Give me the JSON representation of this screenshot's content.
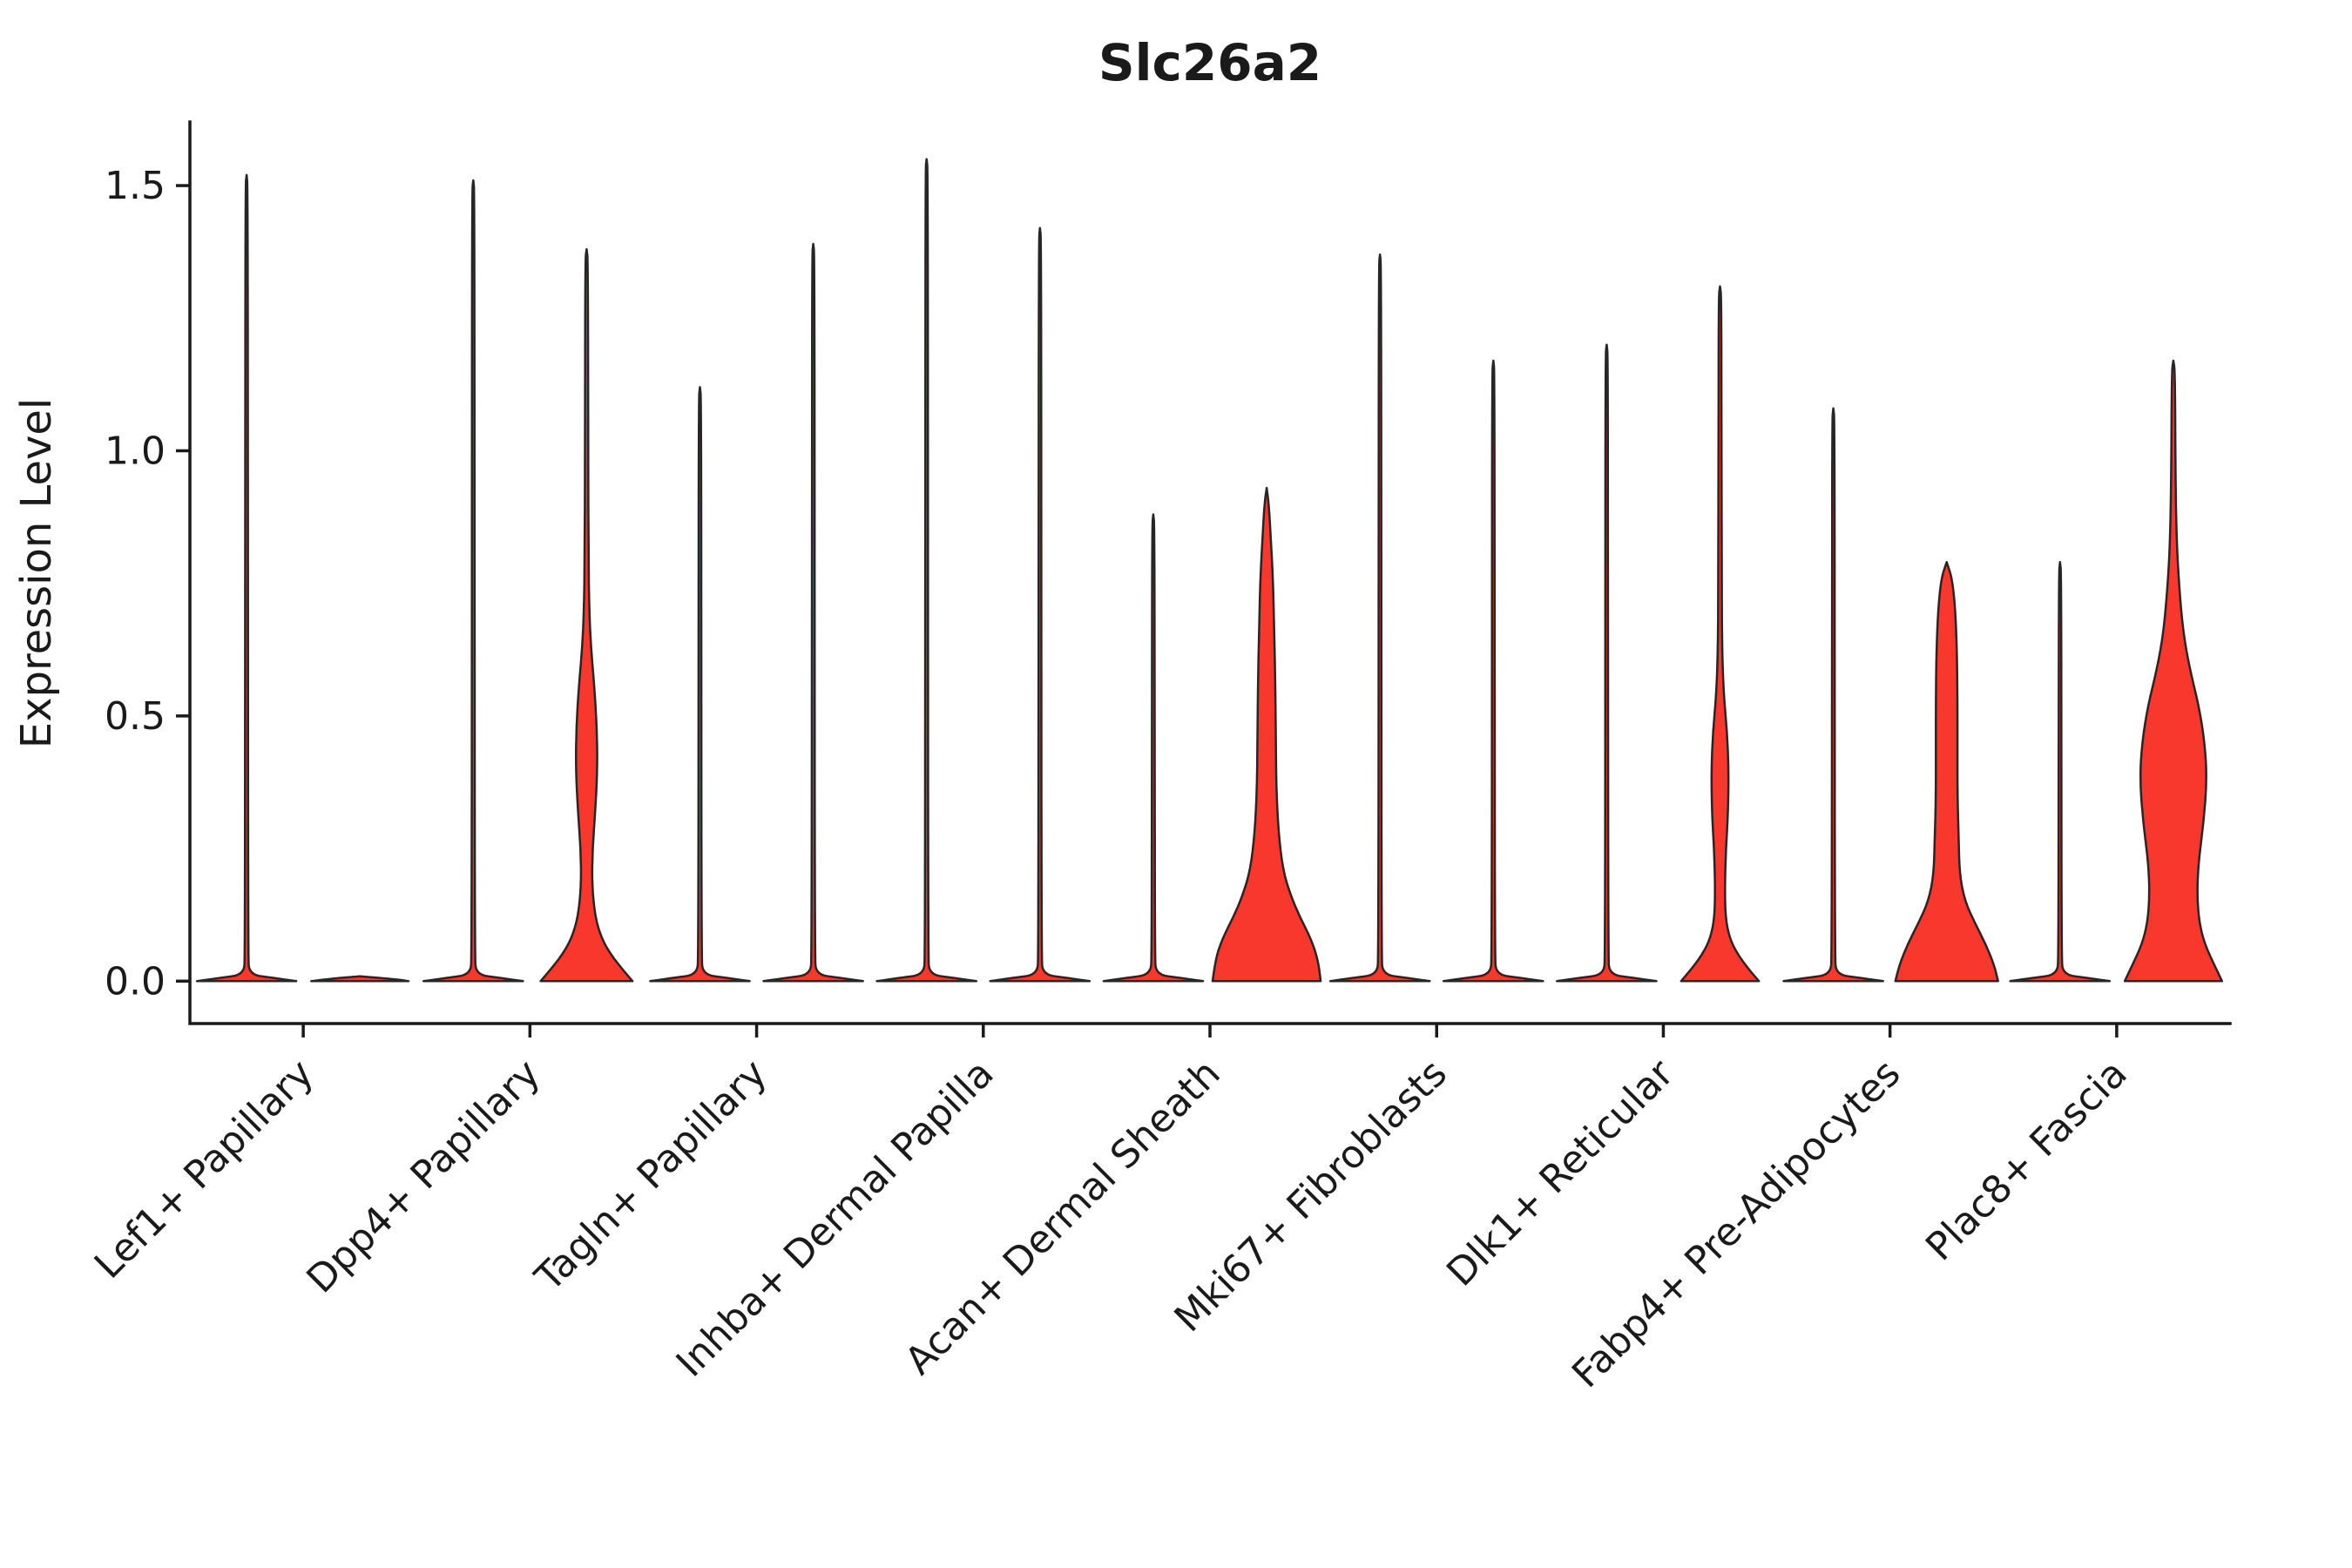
{
  "chart_data": {
    "type": "violin",
    "title": "Slc26a2",
    "ylabel": "Expression Level",
    "xlabel": "",
    "yticks": [
      0.0,
      0.5,
      1.0,
      1.5
    ],
    "ylim": [
      -0.08,
      1.62
    ],
    "grid": false,
    "legend": "none",
    "violins_per_category": 2,
    "fill_color": "#F8372D",
    "stroke_color": "#262626",
    "axis_color": "#1a1a1a",
    "categories": [
      {
        "label": "Lef1+ Papillary",
        "violins": [
          {
            "type": "spike",
            "max": 1.52
          },
          {
            "type": "flat",
            "max": 0.0
          }
        ]
      },
      {
        "label": "Dpp4+ Papillary",
        "violins": [
          {
            "type": "spike",
            "max": 1.51
          },
          {
            "type": "custom",
            "max": 1.38,
            "profile": [
              [
                0,
                0.85
              ],
              [
                0.02,
                0.68
              ],
              [
                0.05,
                0.45
              ],
              [
                0.08,
                0.28
              ],
              [
                0.12,
                0.16
              ],
              [
                0.18,
                0.1
              ],
              [
                0.25,
                0.11
              ],
              [
                0.32,
                0.16
              ],
              [
                0.4,
                0.2
              ],
              [
                0.48,
                0.19
              ],
              [
                0.56,
                0.14
              ],
              [
                0.63,
                0.08
              ],
              [
                0.7,
                0.05
              ],
              [
                0.8,
                0.035
              ],
              [
                1.0,
                0.03
              ],
              [
                1.36,
                0.025
              ],
              [
                1.38,
                0
              ]
            ]
          }
        ]
      },
      {
        "label": "Tagln+ Papillary",
        "violins": [
          {
            "type": "spike",
            "max": 1.12
          },
          {
            "type": "spike",
            "max": 1.39
          }
        ]
      },
      {
        "label": "Inhba+ Dermal Papilla",
        "violins": [
          {
            "type": "spike",
            "max": 1.55
          },
          {
            "type": "spike",
            "max": 1.42
          }
        ]
      },
      {
        "label": "Acan+ Dermal Sheath",
        "violins": [
          {
            "type": "spike",
            "max": 0.88
          },
          {
            "type": "custom",
            "max": 0.93,
            "profile": [
              [
                0,
                1.0
              ],
              [
                0.04,
                0.95
              ],
              [
                0.08,
                0.82
              ],
              [
                0.12,
                0.62
              ],
              [
                0.16,
                0.45
              ],
              [
                0.21,
                0.3
              ],
              [
                0.28,
                0.22
              ],
              [
                0.36,
                0.18
              ],
              [
                0.46,
                0.17
              ],
              [
                0.56,
                0.16
              ],
              [
                0.66,
                0.14
              ],
              [
                0.75,
                0.12
              ],
              [
                0.83,
                0.08
              ],
              [
                0.9,
                0.04
              ],
              [
                0.93,
                0
              ]
            ]
          }
        ]
      },
      {
        "label": "Mki67+ Fibroblasts",
        "violins": [
          {
            "type": "spike",
            "max": 1.37
          },
          {
            "type": "spike",
            "max": 1.17
          }
        ]
      },
      {
        "label": "Dlk1+ Reticular",
        "violins": [
          {
            "type": "spike",
            "max": 1.2
          },
          {
            "type": "custom",
            "max": 1.31,
            "profile": [
              [
                0,
                0.72
              ],
              [
                0.02,
                0.55
              ],
              [
                0.05,
                0.33
              ],
              [
                0.08,
                0.18
              ],
              [
                0.12,
                0.1
              ],
              [
                0.18,
                0.09
              ],
              [
                0.25,
                0.11
              ],
              [
                0.32,
                0.15
              ],
              [
                0.4,
                0.16
              ],
              [
                0.47,
                0.13
              ],
              [
                0.54,
                0.07
              ],
              [
                0.62,
                0.04
              ],
              [
                0.75,
                0.032
              ],
              [
                1.0,
                0.028
              ],
              [
                1.29,
                0.025
              ],
              [
                1.31,
                0
              ]
            ]
          }
        ]
      },
      {
        "label": "Fabp4+ Pre-Adipocytes",
        "violins": [
          {
            "type": "spike",
            "max": 1.08
          },
          {
            "type": "custom",
            "max": 0.79,
            "profile": [
              [
                0,
                0.95
              ],
              [
                0.03,
                0.88
              ],
              [
                0.07,
                0.72
              ],
              [
                0.11,
                0.52
              ],
              [
                0.15,
                0.34
              ],
              [
                0.2,
                0.24
              ],
              [
                0.27,
                0.22
              ],
              [
                0.35,
                0.2
              ],
              [
                0.44,
                0.2
              ],
              [
                0.53,
                0.2
              ],
              [
                0.62,
                0.19
              ],
              [
                0.7,
                0.16
              ],
              [
                0.76,
                0.1
              ],
              [
                0.79,
                0
              ]
            ]
          }
        ]
      },
      {
        "label": "Plac8+ Fascia",
        "violins": [
          {
            "type": "spike",
            "max": 0.79
          },
          {
            "type": "custom",
            "max": 1.17,
            "profile": [
              [
                0,
                0.9
              ],
              [
                0.03,
                0.76
              ],
              [
                0.07,
                0.58
              ],
              [
                0.11,
                0.48
              ],
              [
                0.16,
                0.44
              ],
              [
                0.22,
                0.46
              ],
              [
                0.3,
                0.56
              ],
              [
                0.38,
                0.62
              ],
              [
                0.45,
                0.58
              ],
              [
                0.52,
                0.47
              ],
              [
                0.59,
                0.3
              ],
              [
                0.66,
                0.18
              ],
              [
                0.74,
                0.11
              ],
              [
                0.83,
                0.06
              ],
              [
                0.95,
                0.04
              ],
              [
                1.15,
                0.03
              ],
              [
                1.17,
                0
              ]
            ]
          }
        ]
      }
    ]
  }
}
